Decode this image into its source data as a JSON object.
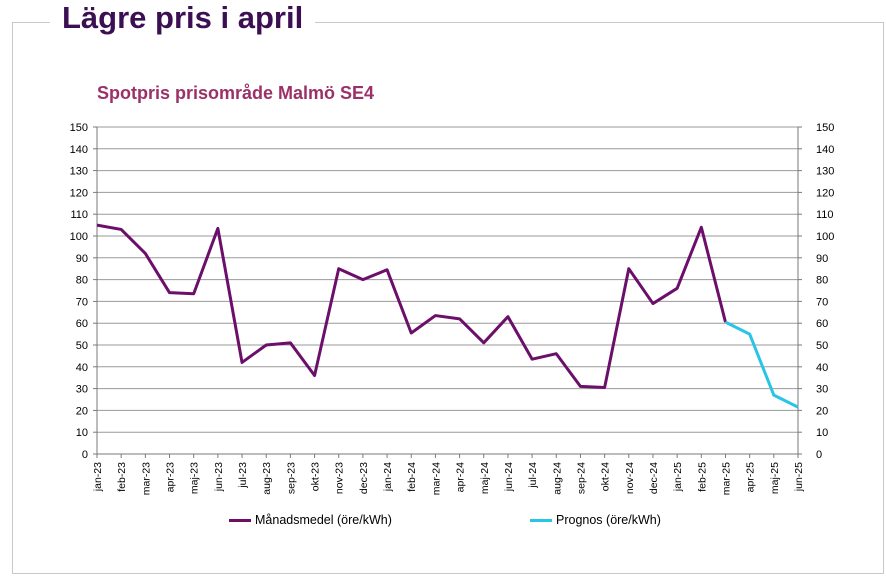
{
  "headline": "Lägre pris i april",
  "chart_data": {
    "type": "line",
    "title": "Spotpris prisområde Malmö SE4",
    "xlabel": "",
    "ylabel": "",
    "ylim": [
      0,
      150
    ],
    "y_ticks": [
      0,
      10,
      20,
      30,
      40,
      50,
      60,
      70,
      80,
      90,
      100,
      110,
      120,
      130,
      140,
      150
    ],
    "grid": true,
    "legend_position": "bottom",
    "categories": [
      "jan-23",
      "feb-23",
      "mar-23",
      "apr-23",
      "maj-23",
      "jun-23",
      "jul-23",
      "aug-23",
      "sep-23",
      "okt-23",
      "nov-23",
      "dec-23",
      "jan-24",
      "feb-24",
      "mar-24",
      "apr-24",
      "maj-24",
      "jun-24",
      "jul-24",
      "aug-24",
      "sep-24",
      "okt-24",
      "nov-24",
      "dec-24",
      "jan-25",
      "feb-25",
      "mar-25",
      "apr-25",
      "maj-25",
      "jun-25"
    ],
    "series": [
      {
        "name": "Månadsmedel (öre/kWh)",
        "color": "#6b0f6b",
        "values": [
          105,
          103,
          92,
          74,
          73.5,
          103.5,
          42,
          50,
          51,
          36,
          85,
          80,
          84.5,
          55.5,
          63.5,
          62,
          51,
          63,
          43.5,
          46,
          31,
          30.5,
          85,
          69,
          76,
          104,
          60.5,
          null,
          null,
          null
        ]
      },
      {
        "name": "Prognos (öre/kWh)",
        "color": "#29c5e6",
        "values": [
          null,
          null,
          null,
          null,
          null,
          null,
          null,
          null,
          null,
          null,
          null,
          null,
          null,
          null,
          null,
          null,
          null,
          null,
          null,
          null,
          null,
          null,
          null,
          null,
          null,
          null,
          60.5,
          55,
          27,
          21.5
        ]
      }
    ]
  }
}
